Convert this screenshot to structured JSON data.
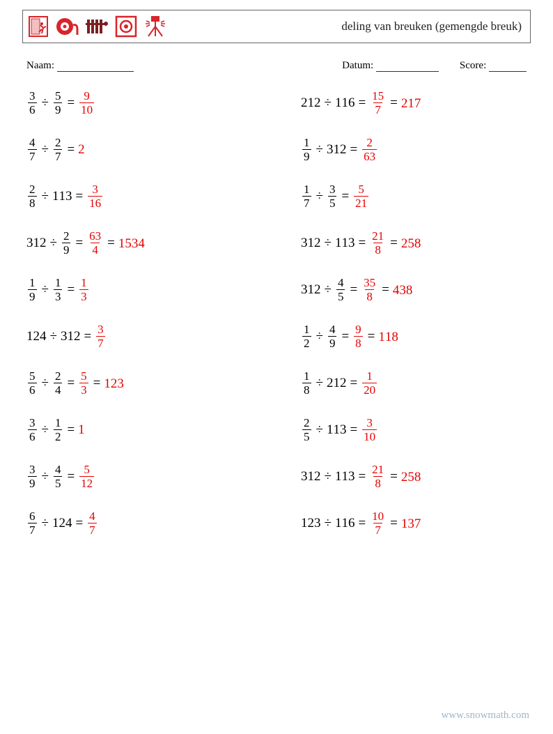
{
  "title": "deling van breuken (gemengde breuk)",
  "labels": {
    "name": "Naam:",
    "date": "Datum:",
    "score": "Score:"
  },
  "blanks": {
    "name_w": 110,
    "date_w": 90,
    "score_w": 54
  },
  "operators": {
    "divide": "÷",
    "equals": "="
  },
  "colors": {
    "text": "#000000",
    "answer": "#e60000",
    "icon_red": "#d8242a",
    "icon_dark": "#7b1f22",
    "footer": "#9fb7c9"
  },
  "footer": "www.snowmath.com",
  "icons": [
    "door-exit",
    "reel",
    "radiator",
    "target-box",
    "tripod-light"
  ],
  "columns": [
    [
      {
        "a": {
          "n": 3,
          "d": 6
        },
        "b": {
          "n": 5,
          "d": 9
        },
        "ans": [
          {
            "n": 9,
            "d": 10
          }
        ]
      },
      {
        "a": {
          "n": 4,
          "d": 7
        },
        "b": {
          "n": 2,
          "d": 7
        },
        "ans": [
          {
            "int": 2
          }
        ]
      },
      {
        "a": {
          "n": 2,
          "d": 8
        },
        "b": {
          "w": 1,
          "n": 1,
          "d": 3
        },
        "ans": [
          {
            "n": 3,
            "d": 16
          }
        ]
      },
      {
        "a": {
          "w": 3,
          "n": 1,
          "d": 2
        },
        "b": {
          "n": 2,
          "d": 9
        },
        "ans": [
          {
            "n": 63,
            "d": 4
          },
          {
            "w": 15,
            "n": 3,
            "d": 4
          }
        ]
      },
      {
        "a": {
          "n": 1,
          "d": 9
        },
        "b": {
          "n": 1,
          "d": 3
        },
        "ans": [
          {
            "n": 1,
            "d": 3
          }
        ]
      },
      {
        "a": {
          "w": 1,
          "n": 2,
          "d": 4
        },
        "b": {
          "w": 3,
          "n": 1,
          "d": 2
        },
        "ans": [
          {
            "n": 3,
            "d": 7
          }
        ]
      },
      {
        "a": {
          "n": 5,
          "d": 6
        },
        "b": {
          "n": 2,
          "d": 4
        },
        "ans": [
          {
            "n": 5,
            "d": 3
          },
          {
            "w": 1,
            "n": 2,
            "d": 3
          }
        ]
      },
      {
        "a": {
          "n": 3,
          "d": 6
        },
        "b": {
          "n": 1,
          "d": 2
        },
        "ans": [
          {
            "int": 1
          }
        ]
      },
      {
        "a": {
          "n": 3,
          "d": 9
        },
        "b": {
          "n": 4,
          "d": 5
        },
        "ans": [
          {
            "n": 5,
            "d": 12
          }
        ]
      },
      {
        "a": {
          "n": 6,
          "d": 7
        },
        "b": {
          "w": 1,
          "n": 2,
          "d": 4
        },
        "ans": [
          {
            "n": 4,
            "d": 7
          }
        ]
      }
    ],
    [
      {
        "a": {
          "w": 2,
          "n": 1,
          "d": 2
        },
        "b": {
          "w": 1,
          "n": 1,
          "d": 6
        },
        "ans": [
          {
            "n": 15,
            "d": 7
          },
          {
            "w": 2,
            "n": 1,
            "d": 7
          }
        ]
      },
      {
        "a": {
          "n": 1,
          "d": 9
        },
        "b": {
          "w": 3,
          "n": 1,
          "d": 2
        },
        "ans": [
          {
            "n": 2,
            "d": 63
          }
        ]
      },
      {
        "a": {
          "n": 1,
          "d": 7
        },
        "b": {
          "n": 3,
          "d": 5
        },
        "ans": [
          {
            "n": 5,
            "d": 21
          }
        ]
      },
      {
        "a": {
          "w": 3,
          "n": 1,
          "d": 2
        },
        "b": {
          "w": 1,
          "n": 1,
          "d": 3
        },
        "ans": [
          {
            "n": 21,
            "d": 8
          },
          {
            "w": 2,
            "n": 5,
            "d": 8
          }
        ]
      },
      {
        "a": {
          "w": 3,
          "n": 1,
          "d": 2
        },
        "b": {
          "n": 4,
          "d": 5
        },
        "ans": [
          {
            "n": 35,
            "d": 8
          },
          {
            "w": 4,
            "n": 3,
            "d": 8
          }
        ]
      },
      {
        "a": {
          "n": 1,
          "d": 2
        },
        "b": {
          "n": 4,
          "d": 9
        },
        "ans": [
          {
            "n": 9,
            "d": 8
          },
          {
            "w": 1,
            "n": 1,
            "d": 8
          }
        ]
      },
      {
        "a": {
          "n": 1,
          "d": 8
        },
        "b": {
          "w": 2,
          "n": 1,
          "d": 2
        },
        "ans": [
          {
            "n": 1,
            "d": 20
          }
        ]
      },
      {
        "a": {
          "n": 2,
          "d": 5
        },
        "b": {
          "w": 1,
          "n": 1,
          "d": 3
        },
        "ans": [
          {
            "n": 3,
            "d": 10
          }
        ]
      },
      {
        "a": {
          "w": 3,
          "n": 1,
          "d": 2
        },
        "b": {
          "w": 1,
          "n": 1,
          "d": 3
        },
        "ans": [
          {
            "n": 21,
            "d": 8
          },
          {
            "w": 2,
            "n": 5,
            "d": 8
          }
        ]
      },
      {
        "a": {
          "w": 1,
          "n": 2,
          "d": 3
        },
        "b": {
          "w": 1,
          "n": 1,
          "d": 6
        },
        "ans": [
          {
            "n": 10,
            "d": 7
          },
          {
            "w": 1,
            "n": 3,
            "d": 7
          }
        ]
      }
    ]
  ]
}
